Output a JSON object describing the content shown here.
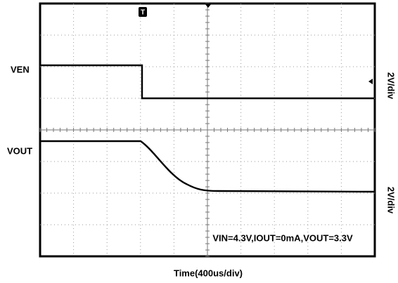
{
  "labels": {
    "ch1": "VEN",
    "ch2": "VOUT",
    "ch1_scale": "2V/div",
    "ch2_scale": "2V/div",
    "time_axis": "Time(400us/div)",
    "conditions": "VIN=4.3V,IOUT=0mA,VOUT=3.3V",
    "trigger": "T"
  }
}
